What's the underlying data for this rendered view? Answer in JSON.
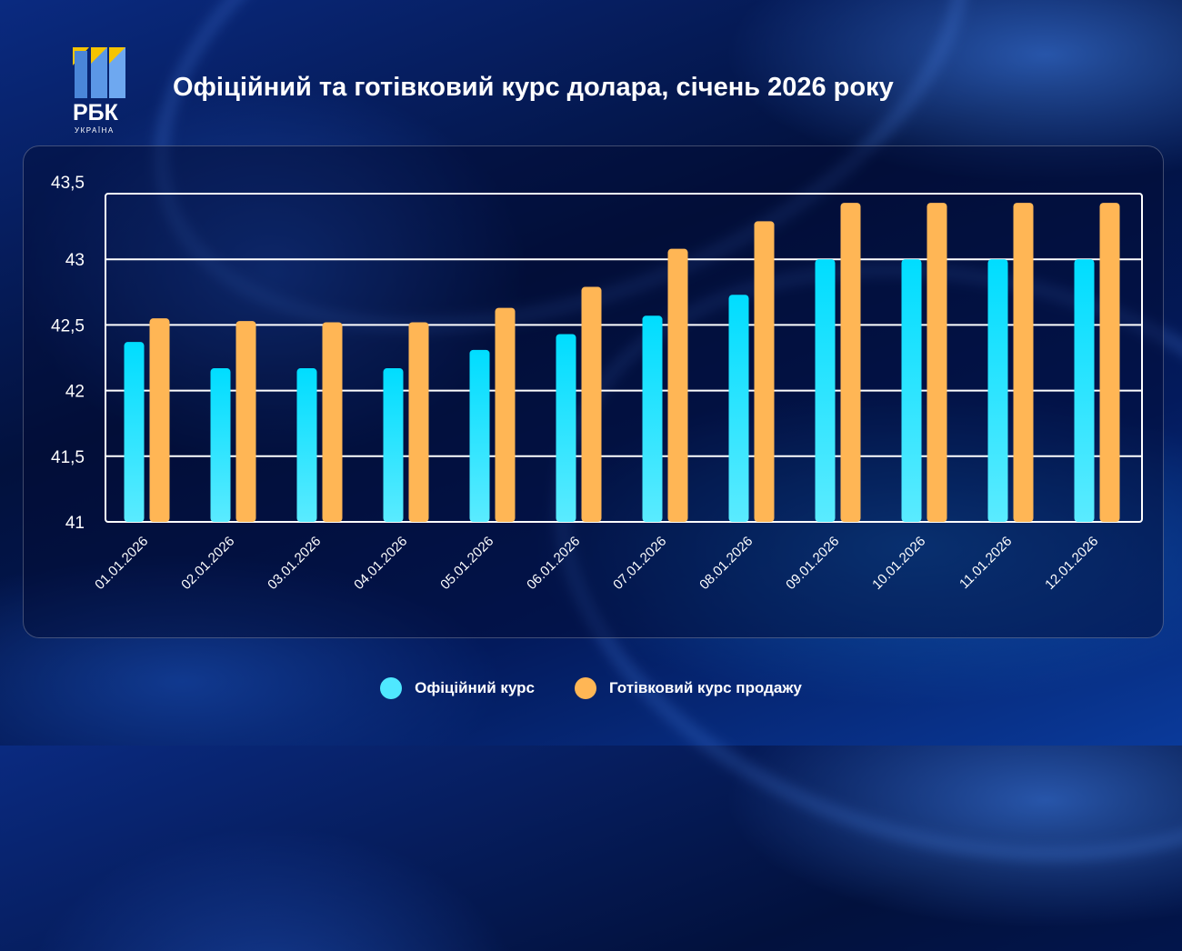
{
  "title": "Офіційний та готівковий курс долара, січень 2026 року",
  "logo": {
    "text": "РБК",
    "subtext": "УКРАЇНА"
  },
  "colors": {
    "official": "#1fe0ff",
    "cash": "#ffb655"
  },
  "chart_data": {
    "type": "bar",
    "title": "Офіційний та готівковий курс долара, січень 2026 року",
    "categories": [
      "01.01.2026",
      "02.01.2026",
      "03.01.2026",
      "04.01.2026",
      "05.01.2026",
      "06.01.2026",
      "07.01.2026",
      "08.01.2026",
      "09.01.2026",
      "10.01.2026",
      "11.01.2026",
      "12.01.2026"
    ],
    "series": [
      {
        "name": "Офіційний курс",
        "values": [
          42.37,
          42.17,
          42.17,
          42.17,
          42.31,
          42.43,
          42.57,
          42.73,
          43.0,
          43.0,
          43.0,
          43.0
        ]
      },
      {
        "name": "Готівковий курс продажу",
        "values": [
          42.55,
          42.53,
          42.52,
          42.52,
          42.63,
          42.79,
          43.08,
          43.29,
          43.43,
          43.43,
          43.43,
          43.43
        ]
      }
    ],
    "ylim": [
      41,
      43.5
    ],
    "yticks": [
      "41",
      "41,5",
      "42",
      "42,5",
      "43",
      "43,5"
    ],
    "grid": true,
    "legend": "bottom",
    "xlabel": "",
    "ylabel": ""
  }
}
